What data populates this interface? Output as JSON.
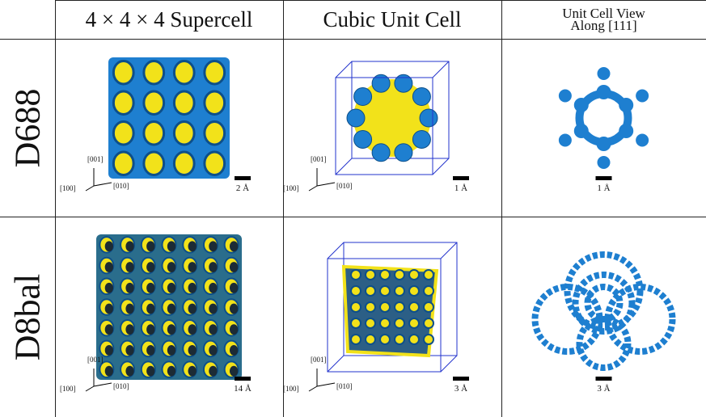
{
  "table": {
    "columns": [
      "4 × 4 × 4 Supercell",
      "Cubic Unit Cell",
      "Unit Cell View Along [111]"
    ],
    "rows": [
      {
        "label": "D688",
        "scale_bars": [
          "2 Å",
          "1 Å",
          "1 Å"
        ]
      },
      {
        "label": "D8bal",
        "scale_bars": [
          "14 Å",
          "3 Å",
          "3 Å"
        ]
      }
    ],
    "axes": [
      "[001]",
      "[100]",
      "[010]"
    ]
  }
}
